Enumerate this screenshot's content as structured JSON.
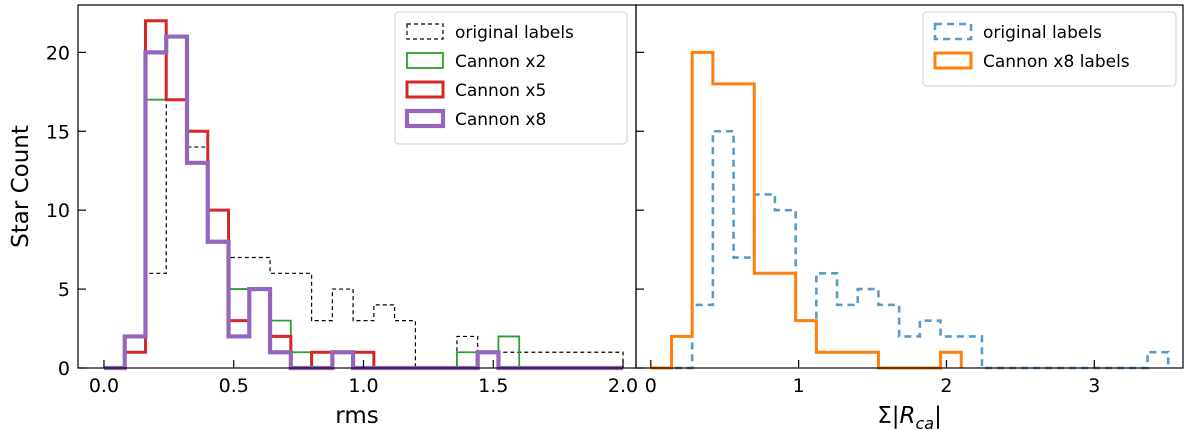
{
  "chart_data": [
    {
      "type": "histogram",
      "xlabel": "rms",
      "ylabel": "Star Count",
      "xlim": [
        -0.1,
        2.05
      ],
      "ylim": [
        0,
        23
      ],
      "xticks": [
        0.0,
        0.5,
        1.0,
        1.5,
        2.0
      ],
      "xtick_labels": [
        "0.0",
        "0.5",
        "1.0",
        "1.5",
        "2.0"
      ],
      "yticks": [
        0,
        5,
        10,
        15,
        20
      ],
      "ytick_labels": [
        "0",
        "5",
        "10",
        "15",
        "20"
      ],
      "legend_position": "top-right",
      "series": [
        {
          "name": "original labels",
          "color": "#000000",
          "style": "dotted-thin",
          "bins": [
            0.0,
            0.08,
            0.16,
            0.24,
            0.32,
            0.4,
            0.48,
            0.56,
            0.64,
            0.72,
            0.8,
            0.88,
            0.96,
            1.04,
            1.12,
            1.2,
            1.28,
            1.36,
            1.44,
            1.52,
            1.6,
            1.68,
            1.76,
            1.84,
            1.92,
            2.0
          ],
          "counts": [
            0,
            1,
            6,
            17,
            14,
            10,
            7,
            7,
            6,
            6,
            3,
            5,
            3,
            4,
            3,
            0,
            0,
            2,
            1,
            1,
            1,
            1,
            1,
            1,
            1
          ]
        },
        {
          "name": "Cannon x2",
          "color": "#2ca02c",
          "style": "solid-thin",
          "bins": [
            0.0,
            0.08,
            0.16,
            0.24,
            0.32,
            0.4,
            0.48,
            0.56,
            0.64,
            0.72,
            0.8,
            0.88,
            0.96,
            1.04,
            1.12,
            1.2,
            1.28,
            1.36,
            1.44,
            1.52,
            1.6
          ],
          "counts": [
            0,
            2,
            17,
            17,
            13,
            10,
            5,
            5,
            3,
            1,
            1,
            1,
            1,
            0,
            0,
            0,
            0,
            1,
            1,
            2
          ]
        },
        {
          "name": "Cannon x5",
          "color": "#d62728",
          "style": "solid-medium",
          "bins": [
            0.0,
            0.08,
            0.16,
            0.24,
            0.32,
            0.4,
            0.48,
            0.56,
            0.64,
            0.72,
            0.8,
            0.88,
            0.96,
            1.04,
            1.12,
            1.2,
            1.28,
            1.36,
            1.44,
            1.52
          ],
          "counts": [
            0,
            1,
            22,
            17,
            15,
            10,
            3,
            5,
            2,
            0,
            1,
            1,
            1,
            0,
            0,
            0,
            0,
            0,
            1
          ]
        },
        {
          "name": "Cannon x8",
          "color": "#9467bd",
          "style": "solid-thick",
          "bins": [
            0.0,
            0.08,
            0.16,
            0.24,
            0.32,
            0.4,
            0.48,
            0.56,
            0.64,
            0.72,
            0.8,
            0.88,
            0.96,
            1.04,
            1.12,
            1.2,
            1.28,
            1.36,
            1.44,
            1.52,
            1.6,
            1.68,
            1.76,
            1.84,
            1.92,
            2.0
          ],
          "counts": [
            0,
            2,
            20,
            21,
            13,
            8,
            2,
            5,
            1,
            0,
            0,
            1,
            0,
            0,
            0,
            0,
            0,
            0,
            1,
            0,
            0,
            0,
            0,
            0,
            0
          ]
        }
      ]
    },
    {
      "type": "histogram",
      "xlabel": "Σ|R_ca|",
      "ylabel": "",
      "xlim": [
        -0.1,
        3.6
      ],
      "ylim": [
        0,
        23
      ],
      "xticks": [
        0,
        1,
        2,
        3
      ],
      "xtick_labels": [
        "0",
        "1",
        "2",
        "3"
      ],
      "yticks": [
        0,
        5,
        10,
        15,
        20
      ],
      "legend_position": "top-right",
      "series": [
        {
          "name": "original labels",
          "color": "#5b9bc8",
          "style": "dashed",
          "bins": [
            0.0,
            0.14,
            0.28,
            0.42,
            0.56,
            0.7,
            0.84,
            0.98,
            1.12,
            1.26,
            1.4,
            1.54,
            1.68,
            1.82,
            1.96,
            2.1,
            2.24,
            2.38,
            2.52,
            2.66,
            2.8,
            2.94,
            3.08,
            3.22,
            3.36,
            3.5
          ],
          "counts": [
            0,
            0,
            4,
            15,
            7,
            11,
            10,
            3,
            6,
            4,
            5,
            4,
            2,
            3,
            2,
            2,
            0,
            0,
            0,
            0,
            0,
            0,
            0,
            0,
            1
          ]
        },
        {
          "name": "Cannon x8 labels",
          "color": "#ff7f0e",
          "style": "solid-medium",
          "bins": [
            0.0,
            0.14,
            0.28,
            0.42,
            0.56,
            0.7,
            0.84,
            0.98,
            1.12,
            1.26,
            1.4,
            1.54,
            1.68,
            1.82,
            1.96,
            2.1
          ],
          "counts": [
            0,
            2,
            20,
            18,
            18,
            6,
            6,
            3,
            1,
            1,
            1,
            0,
            0,
            0,
            1
          ]
        }
      ]
    }
  ]
}
